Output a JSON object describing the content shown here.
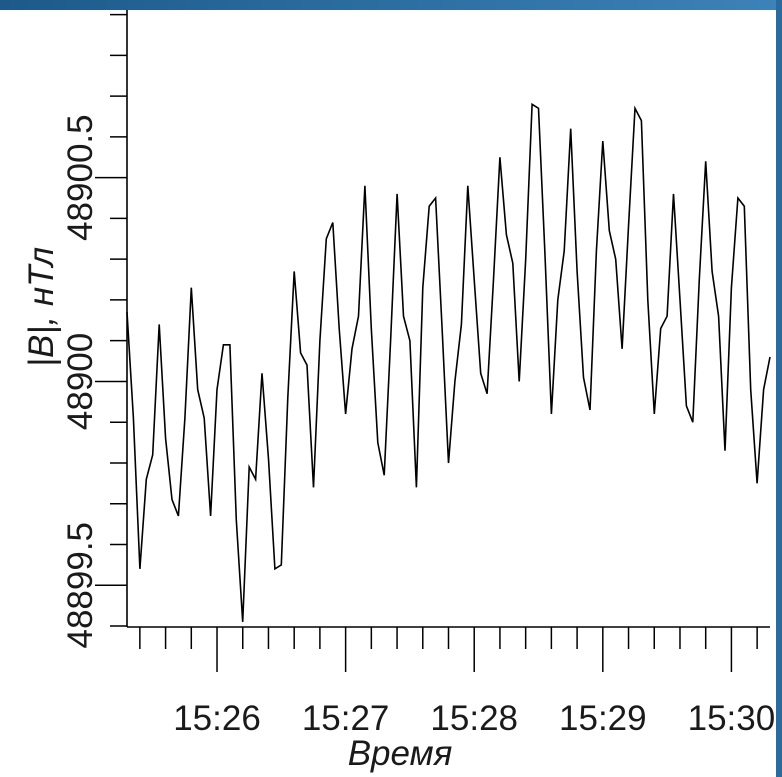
{
  "colors": {
    "top_bar_left": "#1d5a8a",
    "top_bar_right": "#3d82b8",
    "right_border": "#2a6a9c",
    "axes": "#000000"
  },
  "chart_data": {
    "type": "line",
    "xlabel": "Время",
    "ylabel": "|B|, нТл",
    "xlim": [
      "15:25:18",
      "15:30:18"
    ],
    "ylim": [
      48899.4,
      48900.9
    ],
    "x_ticks": [
      "15:26",
      "15:27",
      "15:28",
      "15:29",
      "15:30"
    ],
    "y_ticks": [
      "48899.5",
      "48900",
      "48900.5"
    ],
    "x_minor_per_major": 5,
    "y_minor_per_major": 5,
    "grid": false,
    "legend": "none",
    "x": [
      "15:25:18",
      "15:25:21",
      "15:25:24",
      "15:25:27",
      "15:25:30",
      "15:25:33",
      "15:25:36",
      "15:25:39",
      "15:25:42",
      "15:25:45",
      "15:25:48",
      "15:25:51",
      "15:25:54",
      "15:25:57",
      "15:26:00",
      "15:26:03",
      "15:26:06",
      "15:26:09",
      "15:26:12",
      "15:26:15",
      "15:26:18",
      "15:26:21",
      "15:26:24",
      "15:26:27",
      "15:26:30",
      "15:26:33",
      "15:26:36",
      "15:26:39",
      "15:26:42",
      "15:26:45",
      "15:26:48",
      "15:26:51",
      "15:26:54",
      "15:26:57",
      "15:27:00",
      "15:27:03",
      "15:27:06",
      "15:27:09",
      "15:27:12",
      "15:27:15",
      "15:27:18",
      "15:27:21",
      "15:27:24",
      "15:27:27",
      "15:27:30",
      "15:27:33",
      "15:27:36",
      "15:27:39",
      "15:27:42",
      "15:27:45",
      "15:27:48",
      "15:27:51",
      "15:27:54",
      "15:27:57",
      "15:28:00",
      "15:28:03",
      "15:28:06",
      "15:28:09",
      "15:28:12",
      "15:28:15",
      "15:28:18",
      "15:28:21",
      "15:28:24",
      "15:28:27",
      "15:28:30",
      "15:28:33",
      "15:28:36",
      "15:28:39",
      "15:28:42",
      "15:28:45",
      "15:28:48",
      "15:28:51",
      "15:28:54",
      "15:28:57",
      "15:29:00",
      "15:29:03",
      "15:29:06",
      "15:29:09",
      "15:29:12",
      "15:29:15",
      "15:29:18",
      "15:29:21",
      "15:29:24",
      "15:29:27",
      "15:29:30",
      "15:29:33",
      "15:29:36",
      "15:29:39",
      "15:29:42",
      "15:29:45",
      "15:29:48",
      "15:29:51",
      "15:29:54",
      "15:29:57",
      "15:30:00",
      "15:30:03",
      "15:30:06",
      "15:30:09",
      "15:30:12",
      "15:30:15",
      "15:30:18"
    ],
    "series": [
      {
        "color": "#000000",
        "values": [
          48900.17,
          48899.91,
          48899.54,
          48899.76,
          48899.82,
          48900.14,
          48899.86,
          48899.71,
          48899.67,
          48899.91,
          48900.23,
          48899.98,
          48899.91,
          48899.67,
          48899.98,
          48900.09,
          48900.09,
          48899.66,
          48899.41,
          48899.79,
          48899.76,
          48900.02,
          48899.81,
          48899.54,
          48899.55,
          48899.96,
          48900.27,
          48900.07,
          48900.04,
          48899.74,
          48900.1,
          48900.35,
          48900.39,
          48900.13,
          48899.92,
          48900.08,
          48900.16,
          48900.48,
          48900.13,
          48899.85,
          48899.77,
          48900.1,
          48900.46,
          48900.16,
          48900.1,
          48899.74,
          48900.23,
          48900.43,
          48900.45,
          48900.13,
          48899.8,
          48900.0,
          48900.14,
          48900.48,
          48900.25,
          48900.02,
          48899.97,
          48900.25,
          48900.55,
          48900.36,
          48900.29,
          48900.0,
          48900.3,
          48900.68,
          48900.67,
          48900.31,
          48899.92,
          48900.2,
          48900.32,
          48900.62,
          48900.27,
          48900.01,
          48899.93,
          48900.32,
          48900.59,
          48900.37,
          48900.3,
          48900.08,
          48900.38,
          48900.67,
          48900.64,
          48900.2,
          48899.92,
          48900.13,
          48900.16,
          48900.46,
          48900.2,
          48899.94,
          48899.9,
          48900.25,
          48900.54,
          48900.27,
          48900.16,
          48899.83,
          48900.23,
          48900.45,
          48900.43,
          48899.98,
          48899.75,
          48899.98,
          48900.06
        ]
      }
    ]
  }
}
